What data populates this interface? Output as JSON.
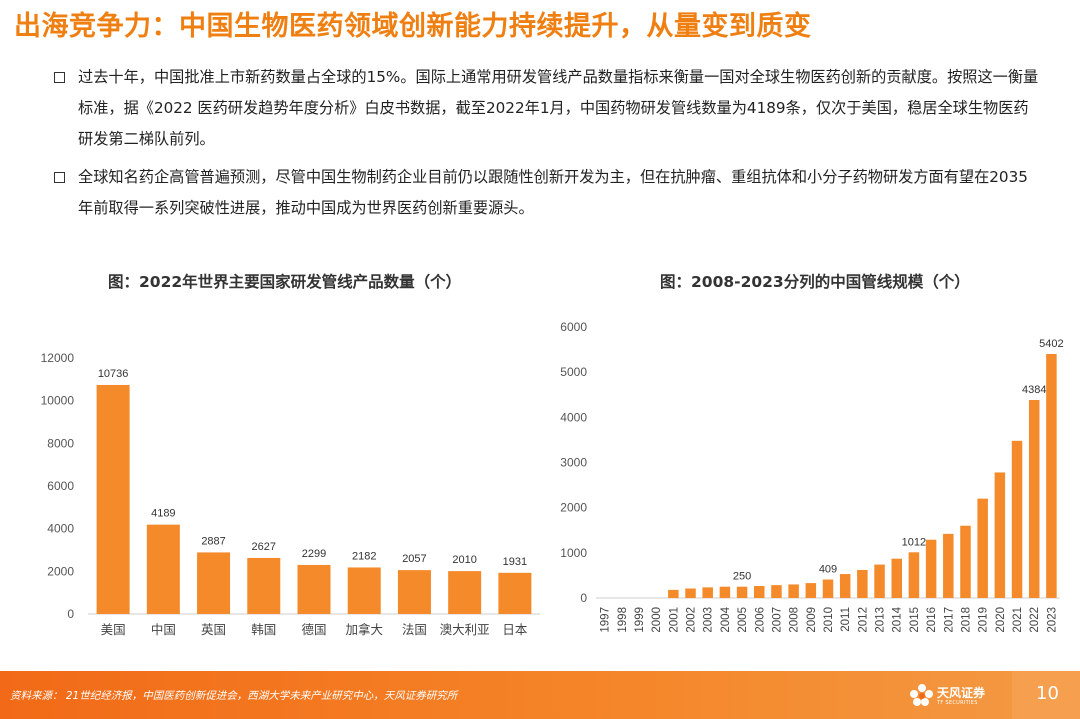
{
  "page": {
    "title": "出海竞争力：中国生物医药领域创新能力持续提升，从量变到质变",
    "bullets": [
      "过去十年，中国批准上市新药数量占全球的15%。国际上通常用研发管线产品数量指标来衡量一国对全球生物医药创新的贡献度。按照这一衡量标准，据《2022 医药研发趋势年度分析》白皮书数据，截至2022年1月，中国药物研发管线数量为4189条，仅次于美国，稳居全球生物医药研发第二梯队前列。",
      "全球知名药企高管普遍预测，尽管中国生物制药企业目前仍以跟随性创新开发为主，但在抗肿瘤、重组抗体和小分子药物研发方面有望在2035年前取得一系列突破性进展，推动中国成为世界医药创新重要源头。"
    ],
    "footer": {
      "source": "资料来源： 21世纪经济报，中国医药创新促进会，西湖大学未来产业研究中心，天风证券研究所",
      "logo_text": "天风证券",
      "logo_sub": "TF SECURITIES",
      "page_number": "10"
    },
    "colors": {
      "accent": "#f07f12",
      "bar": "#f58a2a",
      "footer": "#f26a17"
    }
  },
  "chart_data": [
    {
      "type": "bar",
      "title": "图：2022年世界主要国家研发管线产品数量（个）",
      "categories": [
        "美国",
        "中国",
        "英国",
        "韩国",
        "德国",
        "加拿大",
        "法国",
        "澳大利亚",
        "日本"
      ],
      "values": [
        10736,
        4189,
        2887,
        2627,
        2299,
        2182,
        2057,
        2010,
        1931
      ],
      "data_labels": [
        "10736",
        "4189",
        "2887",
        "2627",
        "2299",
        "2182",
        "2057",
        "2010",
        "1931"
      ],
      "ylim": [
        0,
        12000
      ],
      "yticks": [
        0,
        2000,
        4000,
        6000,
        8000,
        10000,
        12000
      ],
      "grid": false,
      "xlabel": "",
      "ylabel": ""
    },
    {
      "type": "bar",
      "title": "图：2008-2023分列的中国管线规模（个）",
      "categories": [
        "1997",
        "1998",
        "1999",
        "2000",
        "2001",
        "2002",
        "2003",
        "2004",
        "2005",
        "2006",
        "2007",
        "2008",
        "2009",
        "2010",
        "2011",
        "2012",
        "2013",
        "2014",
        "2015",
        "2016",
        "2017",
        "2018",
        "2019",
        "2020",
        "2021",
        "2022",
        "2023"
      ],
      "values": [
        0,
        0,
        0,
        0,
        180,
        210,
        235,
        250,
        250,
        265,
        285,
        300,
        330,
        409,
        530,
        620,
        740,
        870,
        1012,
        1290,
        1420,
        1600,
        2200,
        2780,
        3480,
        4384,
        5402
      ],
      "data_labels": {
        "2005": "250",
        "2010": "409",
        "2015": "1012",
        "2022": "4384",
        "2023": "5402"
      },
      "ylim": [
        0,
        6000
      ],
      "yticks": [
        0,
        1000,
        2000,
        3000,
        4000,
        5000,
        6000
      ],
      "grid": false,
      "xlabel": "",
      "ylabel": ""
    }
  ]
}
